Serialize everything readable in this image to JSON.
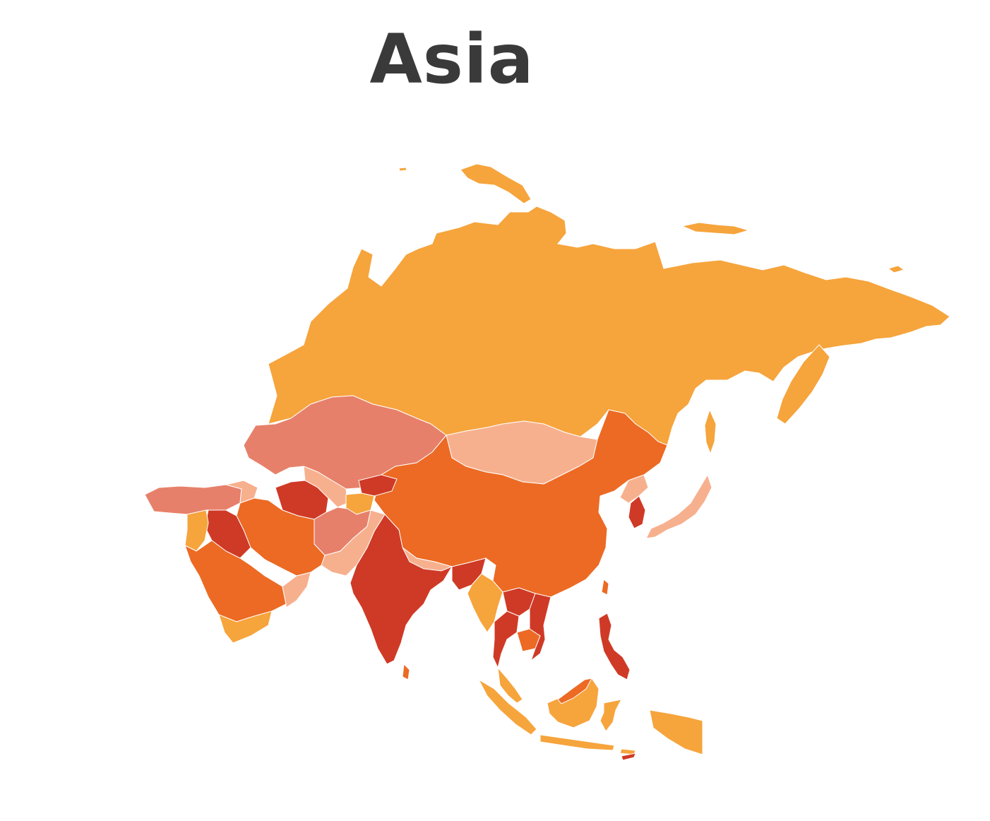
{
  "map": {
    "title": "Asia",
    "colors": {
      "light_orange": "#f6a43c",
      "orange": "#ec6a24",
      "red": "#cf3a26",
      "salmon": "#e7806a",
      "peach": "#f7b08e",
      "title_text": "#3a3a3a",
      "background": "#ffffff"
    },
    "regions": [
      {
        "id": "russia",
        "fill": "light_orange"
      },
      {
        "id": "kazakhstan",
        "fill": "salmon"
      },
      {
        "id": "mongolia",
        "fill": "peach"
      },
      {
        "id": "china",
        "fill": "orange"
      },
      {
        "id": "northeast-china",
        "fill": "orange"
      },
      {
        "id": "korea-north",
        "fill": "peach"
      },
      {
        "id": "korea-south",
        "fill": "red"
      },
      {
        "id": "japan",
        "fill": "peach"
      },
      {
        "id": "turkey",
        "fill": "salmon"
      },
      {
        "id": "caucasus",
        "fill": "peach"
      },
      {
        "id": "turkmenistan",
        "fill": "red"
      },
      {
        "id": "uzbekistan",
        "fill": "peach"
      },
      {
        "id": "kyrgyzstan",
        "fill": "red"
      },
      {
        "id": "tajikistan",
        "fill": "light_orange"
      },
      {
        "id": "afghanistan",
        "fill": "salmon"
      },
      {
        "id": "pakistan",
        "fill": "peach"
      },
      {
        "id": "iran",
        "fill": "orange"
      },
      {
        "id": "iraq",
        "fill": "red"
      },
      {
        "id": "syria-jordan",
        "fill": "light_orange"
      },
      {
        "id": "saudi-arabia",
        "fill": "orange"
      },
      {
        "id": "yemen",
        "fill": "light_orange"
      },
      {
        "id": "oman",
        "fill": "peach"
      },
      {
        "id": "india",
        "fill": "red"
      },
      {
        "id": "nepal",
        "fill": "peach"
      },
      {
        "id": "bangladesh",
        "fill": "red"
      },
      {
        "id": "sri-lanka",
        "fill": "orange"
      },
      {
        "id": "myanmar",
        "fill": "light_orange"
      },
      {
        "id": "thailand",
        "fill": "red"
      },
      {
        "id": "laos",
        "fill": "red"
      },
      {
        "id": "cambodia",
        "fill": "orange"
      },
      {
        "id": "vietnam",
        "fill": "red"
      },
      {
        "id": "malaysia-peninsula",
        "fill": "light_orange"
      },
      {
        "id": "sumatra",
        "fill": "light_orange"
      },
      {
        "id": "java",
        "fill": "light_orange"
      },
      {
        "id": "borneo",
        "fill": "light_orange"
      },
      {
        "id": "borneo-north",
        "fill": "orange"
      },
      {
        "id": "sulawesi",
        "fill": "light_orange"
      },
      {
        "id": "new-guinea-west",
        "fill": "light_orange"
      },
      {
        "id": "philippines",
        "fill": "red"
      },
      {
        "id": "taiwan",
        "fill": "orange"
      },
      {
        "id": "sakhalin",
        "fill": "light_orange"
      },
      {
        "id": "kamchatka",
        "fill": "light_orange"
      },
      {
        "id": "novaya-zemlya",
        "fill": "light_orange"
      },
      {
        "id": "severnaya-zemlya",
        "fill": "light_orange"
      },
      {
        "id": "new-siberian-islands",
        "fill": "light_orange"
      }
    ]
  }
}
